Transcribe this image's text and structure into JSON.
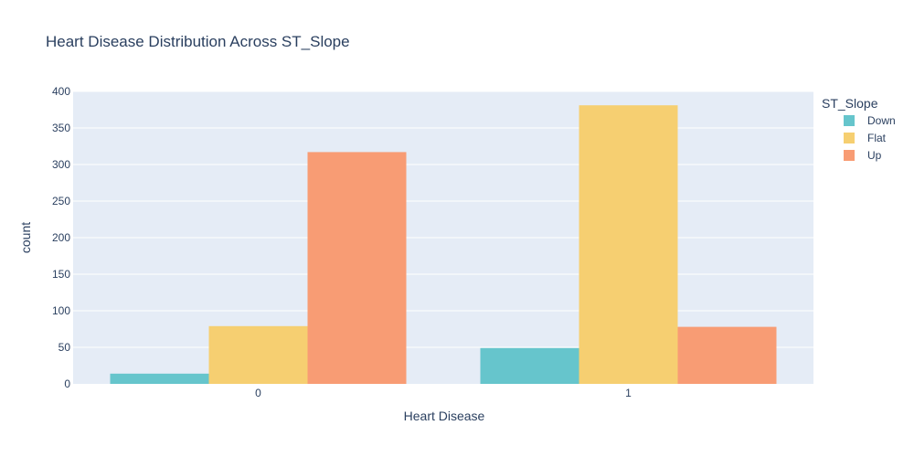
{
  "chart_data": {
    "type": "bar",
    "title": "Heart Disease Distribution Across ST_Slope",
    "xlabel": "Heart Disease",
    "ylabel": "count",
    "categories": [
      "0",
      "1"
    ],
    "series": [
      {
        "name": "Down",
        "values": [
          14,
          49
        ],
        "color": "#66c5cc"
      },
      {
        "name": "Flat",
        "values": [
          79,
          381
        ],
        "color": "#f6cf71"
      },
      {
        "name": "Up",
        "values": [
          317,
          78
        ],
        "color": "#f89c74"
      }
    ],
    "ylim": [
      0,
      400
    ],
    "yticks": [
      0,
      50,
      100,
      150,
      200,
      250,
      300,
      350,
      400
    ],
    "grid": true,
    "plot_background": "#e5ecf6",
    "legend": {
      "title": "ST_Slope",
      "placement": "top-right"
    }
  }
}
